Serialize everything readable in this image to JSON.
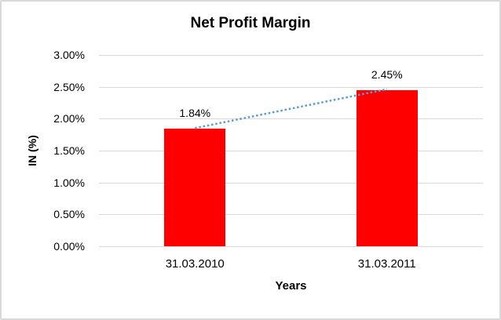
{
  "chart_data": {
    "type": "bar",
    "title": "Net Profit Margin",
    "xlabel": "Years",
    "ylabel": "IN (%)",
    "categories": [
      "31.03.2010",
      "31.03.2011"
    ],
    "values": [
      1.84,
      2.45
    ],
    "data_labels": [
      "1.84%",
      "2.45%"
    ],
    "y_ticks": [
      "0.00%",
      "0.50%",
      "1.00%",
      "1.50%",
      "2.00%",
      "2.50%",
      "3.00%"
    ],
    "ylim": [
      0,
      3
    ],
    "y_tick_step": 0.5,
    "grid": true,
    "legend": "none",
    "bar_color": "#FF0000",
    "gridline_color": "#d9d9d9",
    "trendline": {
      "style": "dotted",
      "color": "#5B9BD5",
      "from_value": 1.84,
      "to_value": 2.45
    }
  }
}
